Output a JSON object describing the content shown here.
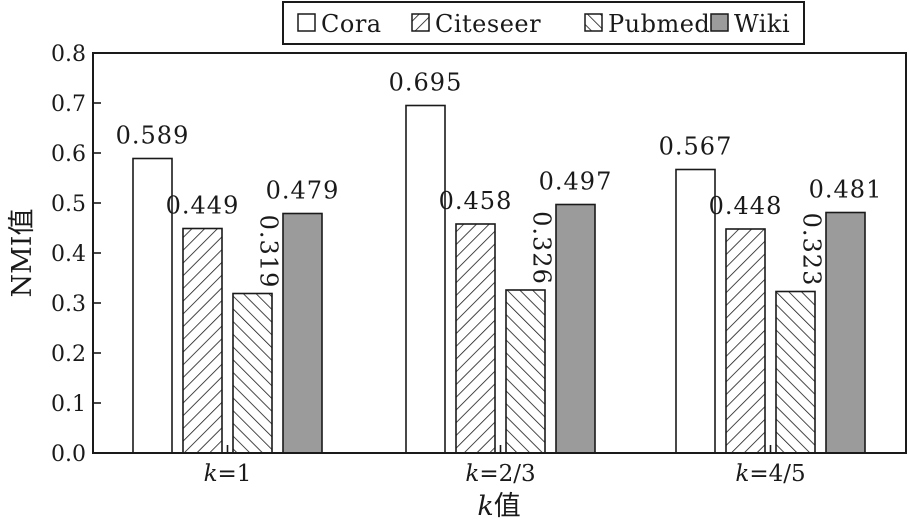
{
  "chart_data": {
    "type": "bar",
    "title": "",
    "xlabel_italic": "k",
    "xlabel_rest": "值",
    "ylabel": "NMI值",
    "ylim": [
      0,
      0.8
    ],
    "yticks": [
      "0.0",
      "0.1",
      "0.2",
      "0.3",
      "0.4",
      "0.5",
      "0.6",
      "0.7",
      "0.8"
    ],
    "categories": [
      {
        "italic": "k",
        "rest": "=1"
      },
      {
        "italic": "k",
        "rest": "=2/3"
      },
      {
        "italic": "k",
        "rest": "=4/5"
      }
    ],
    "series": [
      {
        "name": "Cora",
        "values": [
          0.589,
          0.695,
          0.567
        ],
        "labels": [
          "0.589",
          "0.695",
          "0.567"
        ],
        "fill": "#ffffff",
        "pattern": "none"
      },
      {
        "name": "Citeseer",
        "values": [
          0.449,
          0.458,
          0.448
        ],
        "labels": [
          "0.449",
          "0.458",
          "0.448"
        ],
        "fill": "#ffffff",
        "pattern": "backslash"
      },
      {
        "name": "Pubmed",
        "values": [
          0.319,
          0.326,
          0.323
        ],
        "labels": [
          "0.319",
          "0.326",
          "0.323"
        ],
        "fill": "#ffffff",
        "pattern": "slash"
      },
      {
        "name": "Wiki",
        "values": [
          0.479,
          0.497,
          0.481
        ],
        "labels": [
          "0.479",
          "0.497",
          "0.481"
        ],
        "fill": "#9b9b9b",
        "pattern": "none"
      }
    ],
    "legend_position": "top-right",
    "grid": false
  }
}
